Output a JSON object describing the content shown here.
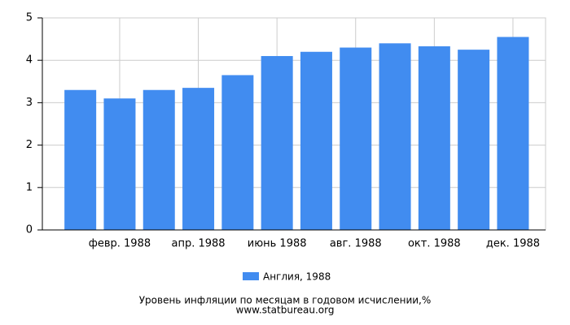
{
  "chart_data": {
    "type": "bar",
    "title": "Уровень инфляции по месяцам в годовом исчислении,%",
    "subtitle": "www.statbureau.org",
    "categories": [
      null,
      "февр. 1988",
      null,
      "апр. 1988",
      null,
      "июнь 1988",
      null,
      "авг. 1988",
      null,
      "окт. 1988",
      null,
      "дек. 1988"
    ],
    "series": [
      {
        "name": "Англия, 1988",
        "color": "#418cf0",
        "values": [
          3.3,
          3.1,
          3.3,
          3.35,
          3.65,
          4.1,
          4.2,
          4.3,
          4.4,
          4.33,
          4.25,
          4.55
        ]
      }
    ],
    "ylim": [
      0,
      5
    ],
    "yticks": [
      0,
      1,
      2,
      3,
      4,
      5
    ],
    "grid": true
  }
}
